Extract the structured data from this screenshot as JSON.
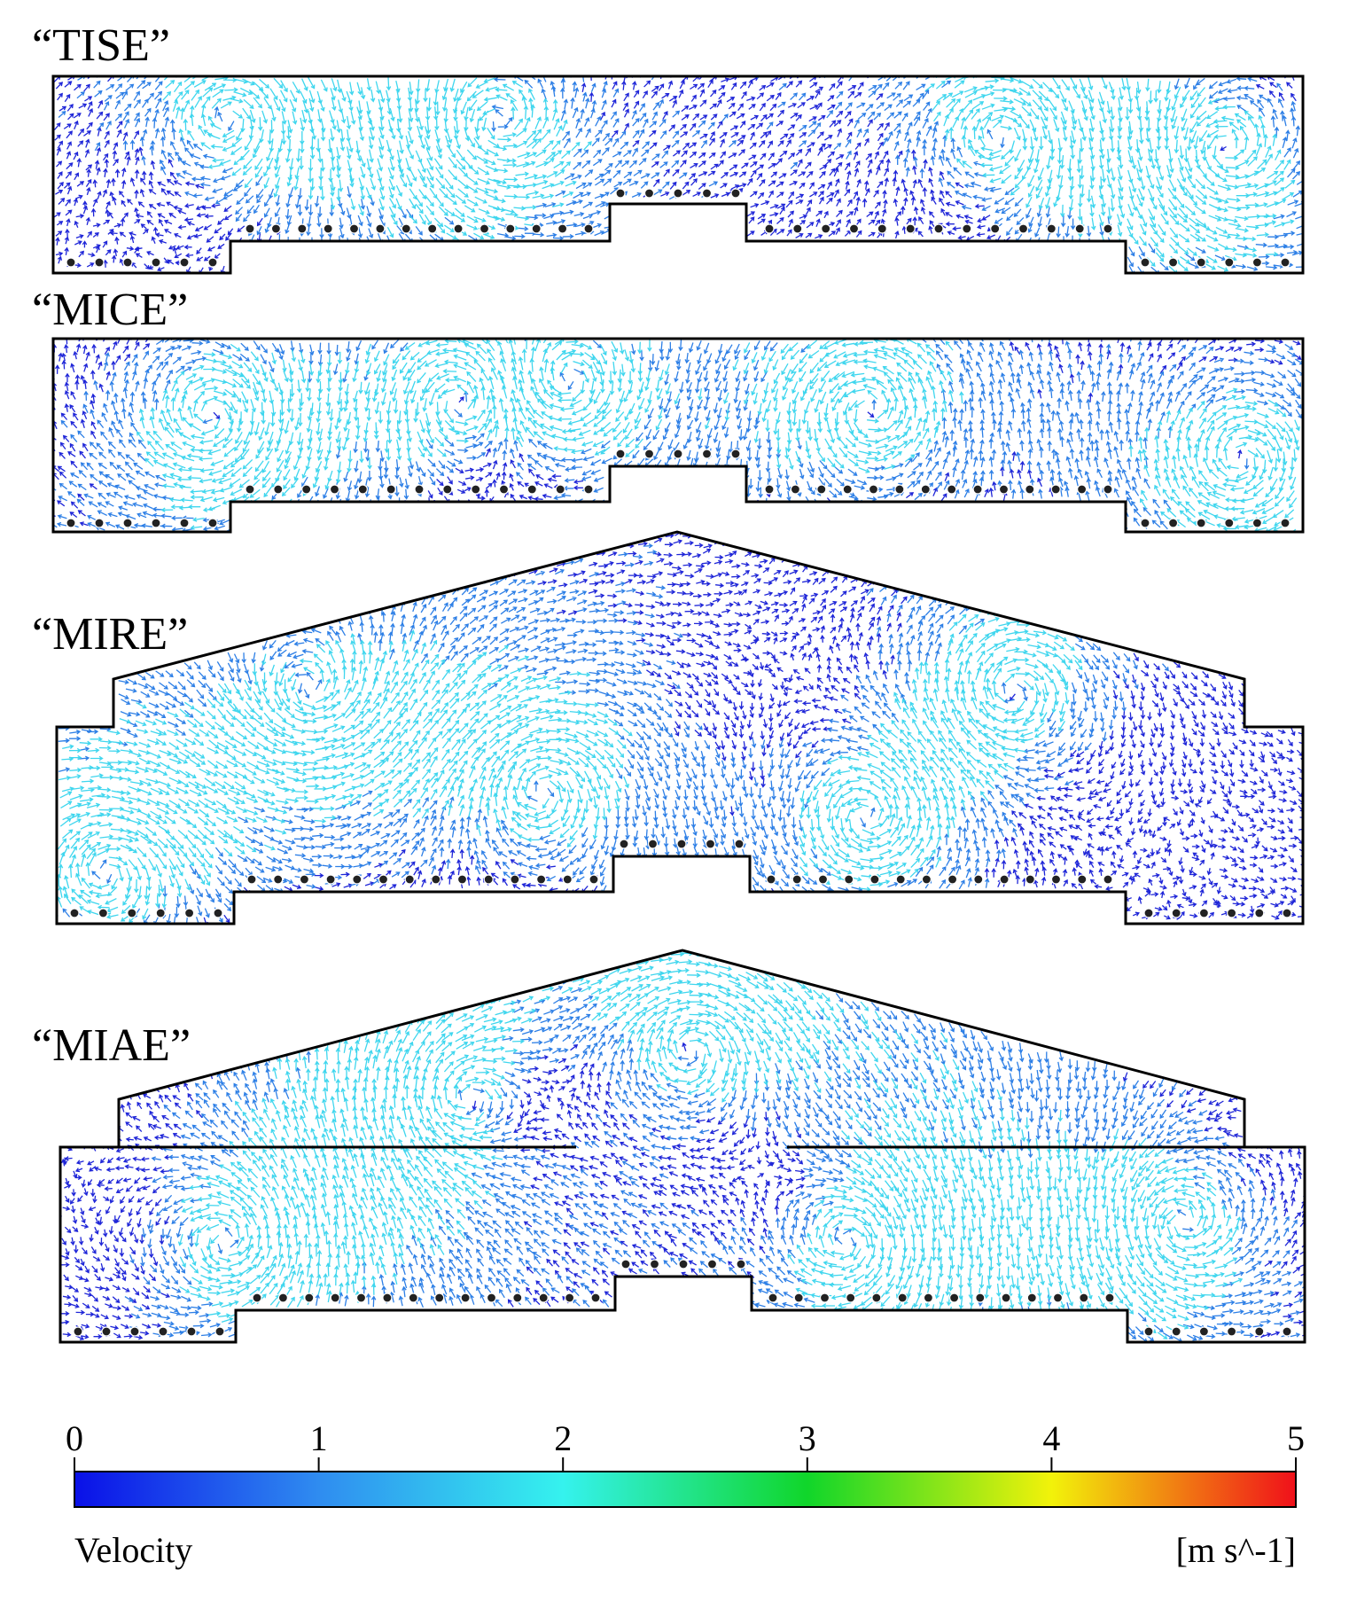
{
  "panels": [
    {
      "id": "tise",
      "label": "“TISE”",
      "roof": "flat"
    },
    {
      "id": "mice",
      "label": "“MICE”",
      "roof": "flat"
    },
    {
      "id": "mire",
      "label": "“MIRE”",
      "roof": "gable"
    },
    {
      "id": "miae",
      "label": "“MIAE”",
      "roof": "gable-attic"
    }
  ],
  "colorbar": {
    "ticks": [
      "0",
      "1",
      "2",
      "3",
      "4",
      "5"
    ],
    "min": 0,
    "max": 5,
    "title": "Velocity",
    "unit": "[m s^-1]",
    "colors": [
      "#0a10e8",
      "#2f8cf0",
      "#35f2ee",
      "#10d62a",
      "#f2f20a",
      "#f0101a"
    ]
  },
  "arrow_colors": {
    "slow": "#1f26d8",
    "mid": "#2d7fe6",
    "fast": "#3fd6ee"
  }
}
